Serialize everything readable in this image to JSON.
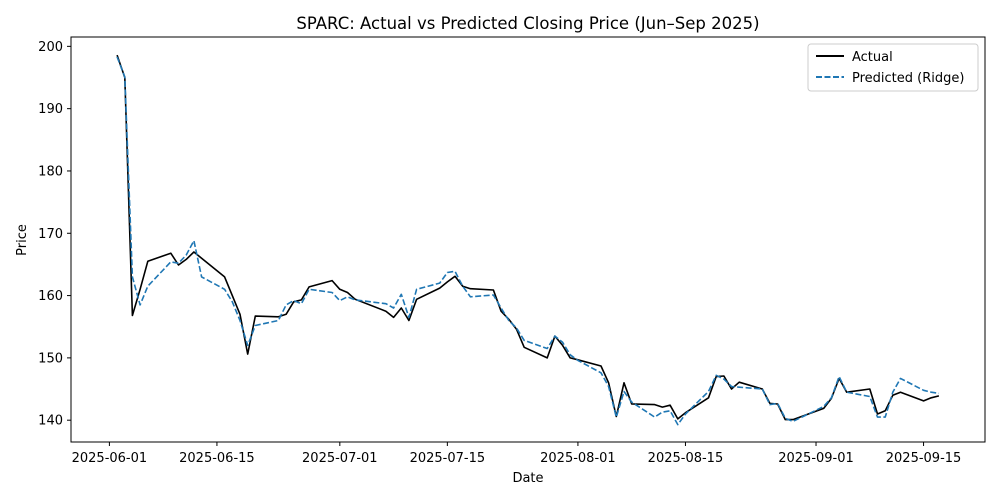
{
  "chart_data": {
    "type": "line",
    "title": "SPARC: Actual vs Predicted Closing Price (Jun–Sep 2025)",
    "xlabel": "Date",
    "ylabel": "Price",
    "xlim": [
      "2025-05-27",
      "2025-09-23"
    ],
    "ylim": [
      136.5,
      201.5
    ],
    "x_ticks": [
      "2025-06-01",
      "2025-06-15",
      "2025-07-01",
      "2025-07-15",
      "2025-08-01",
      "2025-08-15",
      "2025-09-01",
      "2025-09-15"
    ],
    "y_ticks": [
      140,
      150,
      160,
      170,
      180,
      190,
      200
    ],
    "legend_position": "top-right",
    "grid": false,
    "x": [
      "2025-06-02",
      "2025-06-03",
      "2025-06-04",
      "2025-06-05",
      "2025-06-06",
      "2025-06-09",
      "2025-06-10",
      "2025-06-11",
      "2025-06-12",
      "2025-06-13",
      "2025-06-16",
      "2025-06-17",
      "2025-06-18",
      "2025-06-19",
      "2025-06-20",
      "2025-06-23",
      "2025-06-24",
      "2025-06-25",
      "2025-06-26",
      "2025-06-27",
      "2025-06-30",
      "2025-07-01",
      "2025-07-02",
      "2025-07-03",
      "2025-07-07",
      "2025-07-08",
      "2025-07-09",
      "2025-07-10",
      "2025-07-11",
      "2025-07-14",
      "2025-07-15",
      "2025-07-16",
      "2025-07-17",
      "2025-07-18",
      "2025-07-21",
      "2025-07-22",
      "2025-07-23",
      "2025-07-24",
      "2025-07-25",
      "2025-07-28",
      "2025-07-29",
      "2025-07-30",
      "2025-07-31",
      "2025-08-01",
      "2025-08-04",
      "2025-08-05",
      "2025-08-06",
      "2025-08-07",
      "2025-08-08",
      "2025-08-11",
      "2025-08-12",
      "2025-08-13",
      "2025-08-14",
      "2025-08-15",
      "2025-08-18",
      "2025-08-19",
      "2025-08-20",
      "2025-08-21",
      "2025-08-22",
      "2025-08-25",
      "2025-08-26",
      "2025-08-27",
      "2025-08-28",
      "2025-08-29",
      "2025-09-02",
      "2025-09-03",
      "2025-09-04",
      "2025-09-05",
      "2025-09-08",
      "2025-09-09",
      "2025-09-10",
      "2025-09-11",
      "2025-09-12",
      "2025-09-15",
      "2025-09-16",
      "2025-09-17"
    ],
    "series": [
      {
        "name": "Actual",
        "color": "#000000",
        "style": "solid",
        "values": [
          198.6,
          195.0,
          156.8,
          161.0,
          165.5,
          166.8,
          164.9,
          165.8,
          167.0,
          166.0,
          163.0,
          160.0,
          157.0,
          150.6,
          156.7,
          156.6,
          157.0,
          159.0,
          159.3,
          161.4,
          162.4,
          161.0,
          160.5,
          159.4,
          157.5,
          156.5,
          158.0,
          156.0,
          159.4,
          161.2,
          162.2,
          163.1,
          161.5,
          161.1,
          160.9,
          157.5,
          156.2,
          154.6,
          151.7,
          150.0,
          153.5,
          152.0,
          150.0,
          149.7,
          148.7,
          146.0,
          140.6,
          146.0,
          142.6,
          142.5,
          142.1,
          142.4,
          140.2,
          141.2,
          143.6,
          147.0,
          147.1,
          145.0,
          146.1,
          145.0,
          142.7,
          142.6,
          140.1,
          140.1,
          141.9,
          143.5,
          146.7,
          144.5,
          145.0,
          141.0,
          141.5,
          144.0,
          144.5,
          143.1,
          143.6,
          143.9
        ]
      },
      {
        "name": "Predicted (Ridge)",
        "color": "#1f77b4",
        "style": "dashed",
        "values": [
          198.3,
          195.1,
          163.0,
          158.5,
          161.5,
          165.4,
          165.2,
          166.5,
          168.8,
          163.0,
          161.0,
          159.0,
          156.0,
          152.0,
          155.2,
          156.0,
          158.5,
          159.2,
          158.7,
          161.0,
          160.5,
          159.2,
          159.8,
          159.3,
          158.7,
          158.0,
          160.2,
          156.5,
          161.0,
          162.0,
          163.7,
          163.9,
          161.5,
          159.8,
          160.1,
          158.0,
          156.0,
          154.8,
          152.8,
          151.5,
          153.5,
          152.5,
          150.5,
          149.6,
          147.6,
          145.4,
          140.5,
          144.6,
          142.9,
          140.5,
          141.3,
          141.5,
          139.3,
          141.0,
          144.6,
          147.2,
          146.6,
          145.4,
          145.3,
          145.0,
          142.5,
          142.7,
          140.3,
          139.8,
          142.2,
          143.6,
          147.0,
          144.5,
          143.8,
          140.5,
          140.5,
          144.5,
          146.7,
          144.8,
          144.5,
          144.3
        ]
      }
    ]
  }
}
